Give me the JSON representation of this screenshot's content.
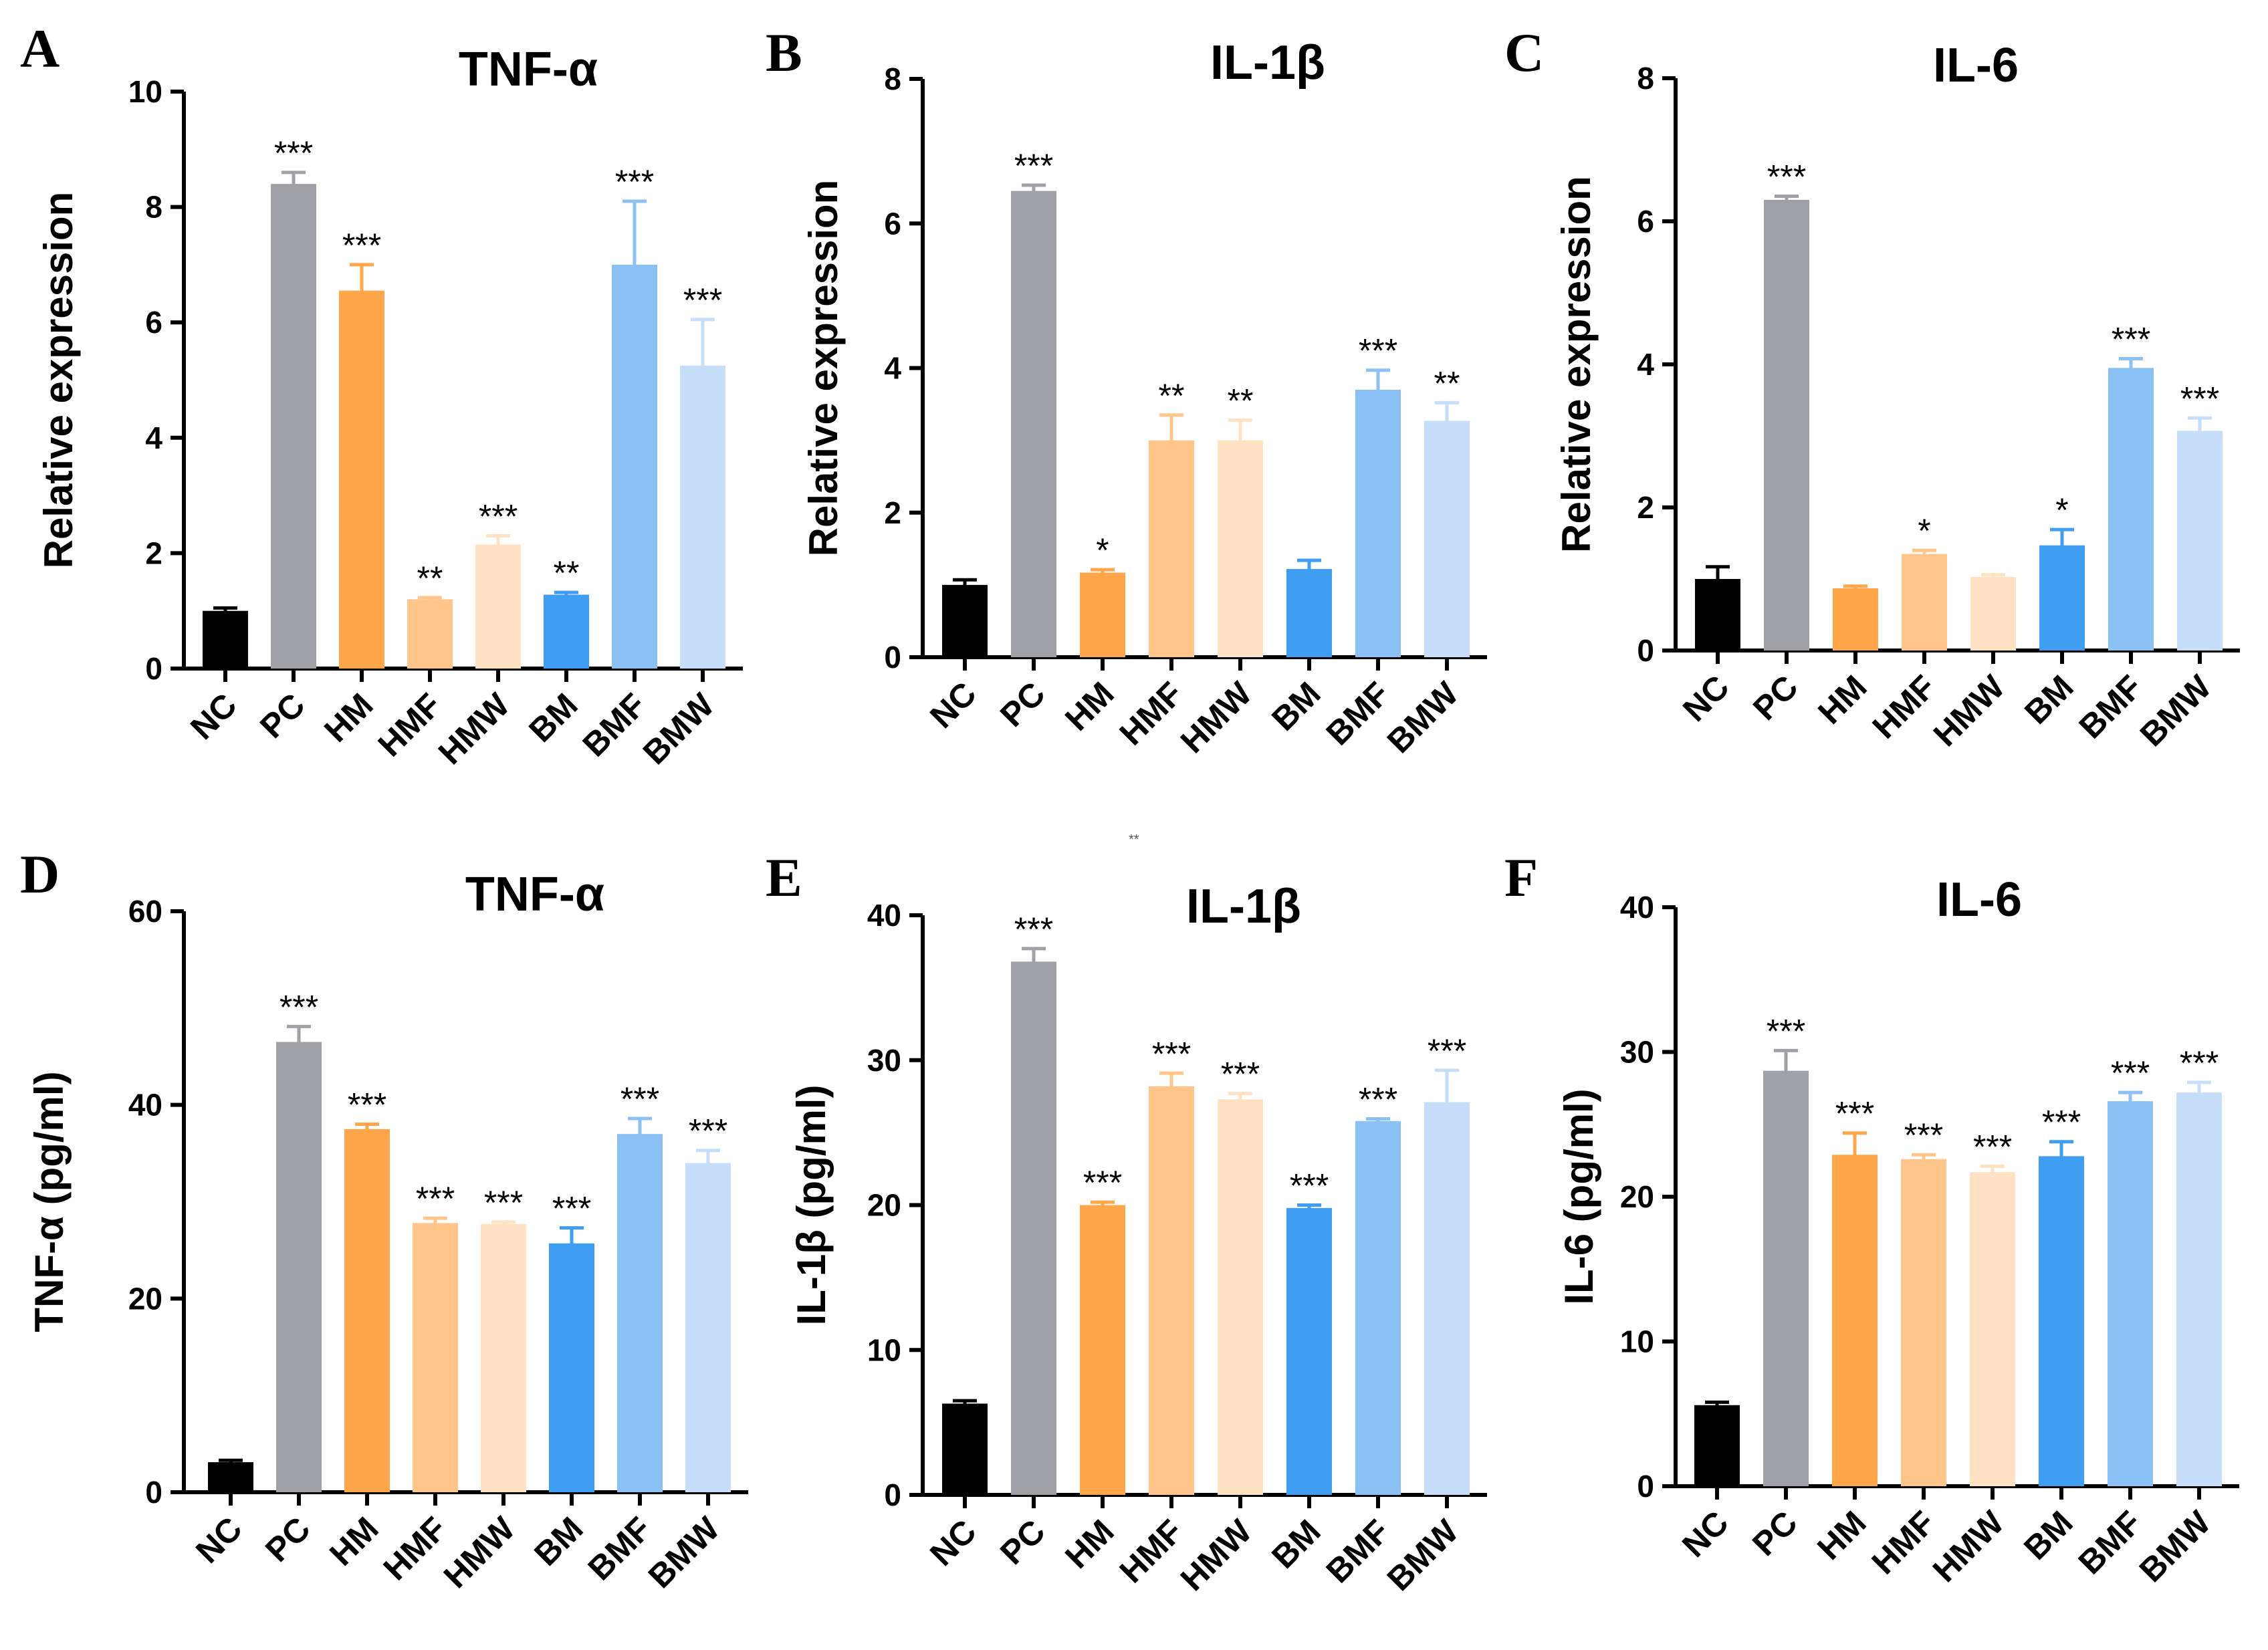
{
  "figure": {
    "stray_mark": "**"
  },
  "colors": {
    "NC": "#000000",
    "PC": "#a0a1a6",
    "HM": "#ffa54a",
    "HMF": "#ffc58a",
    "HMW": "#ffe2c4",
    "BM": "#3f9df2",
    "BMF": "#8cc1f6",
    "BMW": "#c6defa"
  },
  "chart_data": [
    {
      "panel": "A",
      "type": "bar",
      "title": "TNF-α",
      "ylabel": "Relative expression",
      "categories": [
        "NC",
        "PC",
        "HM",
        "HMF",
        "HMW",
        "BM",
        "BMF",
        "BMW"
      ],
      "values": [
        1.0,
        8.4,
        6.55,
        1.2,
        2.15,
        1.28,
        7.0,
        5.25
      ],
      "errors": [
        0.05,
        0.2,
        0.45,
        0.03,
        0.15,
        0.04,
        1.1,
        0.8
      ],
      "significance": [
        "",
        "***",
        "***",
        "**",
        "***",
        "**",
        "***",
        "***"
      ],
      "ylim": [
        0,
        10
      ],
      "yticks": [
        0,
        2,
        4,
        6,
        8,
        10
      ],
      "ytick_labels": [
        "0",
        "2",
        "4",
        "6",
        "8",
        "10"
      ]
    },
    {
      "panel": "B",
      "type": "bar",
      "title": "IL-1β",
      "ylabel": "Relative expression",
      "categories": [
        "NC",
        "PC",
        "HM",
        "HMF",
        "HMW",
        "BM",
        "BMF",
        "BMW"
      ],
      "values": [
        1.0,
        6.45,
        1.17,
        3.0,
        3.0,
        1.22,
        3.7,
        3.27
      ],
      "errors": [
        0.07,
        0.08,
        0.04,
        0.35,
        0.28,
        0.12,
        0.27,
        0.25
      ],
      "significance": [
        "",
        "***",
        "*",
        "**",
        "**",
        "",
        "***",
        "**"
      ],
      "ylim": [
        0,
        8
      ],
      "yticks": [
        0,
        2,
        4,
        6,
        8
      ],
      "ytick_labels": [
        "0",
        "2",
        "4",
        "6",
        "8"
      ]
    },
    {
      "panel": "C",
      "type": "bar",
      "title": "IL-6",
      "ylabel": "Relative expression",
      "categories": [
        "NC",
        "PC",
        "HM",
        "HMF",
        "HMW",
        "BM",
        "BMF",
        "BMW"
      ],
      "values": [
        1.0,
        6.3,
        0.87,
        1.35,
        1.03,
        1.47,
        3.95,
        3.07
      ],
      "errors": [
        0.17,
        0.05,
        0.03,
        0.05,
        0.03,
        0.22,
        0.13,
        0.18
      ],
      "significance": [
        "",
        "***",
        "",
        "*",
        "",
        "*",
        "***",
        "***"
      ],
      "ylim": [
        0,
        8
      ],
      "yticks": [
        0,
        2,
        4,
        6,
        8
      ],
      "ytick_labels": [
        "0",
        "2",
        "4",
        "6",
        "8"
      ]
    },
    {
      "panel": "D",
      "type": "bar",
      "title": "TNF-α",
      "ylabel": "TNF-α (pg/ml)",
      "categories": [
        "NC",
        "PC",
        "HM",
        "HMF",
        "HMW",
        "BM",
        "BMF",
        "BMW"
      ],
      "values": [
        3.1,
        46.5,
        37.5,
        27.8,
        27.7,
        25.7,
        37.0,
        34.0
      ],
      "errors": [
        0.2,
        1.6,
        0.5,
        0.5,
        0.2,
        1.6,
        1.6,
        1.3
      ],
      "significance": [
        "",
        "***",
        "***",
        "***",
        "***",
        "***",
        "***",
        "***"
      ],
      "ylim": [
        0,
        60
      ],
      "yticks": [
        0,
        20,
        40,
        60
      ],
      "ytick_labels": [
        "0",
        "20",
        "40",
        "60"
      ]
    },
    {
      "panel": "E",
      "type": "bar",
      "title": "IL-1β",
      "ylabel": "IL-1β (pg/ml)",
      "categories": [
        "NC",
        "PC",
        "HM",
        "HMF",
        "HMW",
        "BM",
        "BMF",
        "BMW"
      ],
      "values": [
        6.3,
        36.8,
        20.0,
        28.2,
        27.3,
        19.8,
        25.8,
        27.1
      ],
      "errors": [
        0.2,
        0.9,
        0.2,
        0.9,
        0.4,
        0.2,
        0.15,
        2.2
      ],
      "significance": [
        "",
        "***",
        "***",
        "***",
        "***",
        "***",
        "***",
        "***"
      ],
      "ylim": [
        0,
        40
      ],
      "yticks": [
        0,
        10,
        20,
        30,
        40
      ],
      "ytick_labels": [
        "0",
        "10",
        "20",
        "30",
        "40"
      ]
    },
    {
      "panel": "F",
      "type": "bar",
      "title": "IL-6",
      "ylabel": "IL-6 (pg/ml)",
      "categories": [
        "NC",
        "PC",
        "HM",
        "HMF",
        "HMW",
        "BM",
        "BMF",
        "BMW"
      ],
      "values": [
        5.6,
        28.7,
        22.9,
        22.6,
        21.7,
        22.8,
        26.6,
        27.2
      ],
      "errors": [
        0.2,
        1.4,
        1.5,
        0.3,
        0.4,
        1.0,
        0.6,
        0.7
      ],
      "significance": [
        "",
        "***",
        "***",
        "***",
        "***",
        "***",
        "***",
        "***"
      ],
      "ylim": [
        0,
        40
      ],
      "yticks": [
        0,
        10,
        20,
        30,
        40
      ],
      "ytick_labels": [
        "0",
        "10",
        "20",
        "30",
        "40"
      ]
    }
  ]
}
